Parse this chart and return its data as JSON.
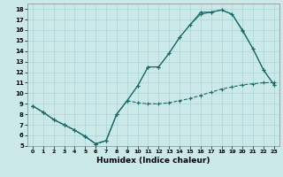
{
  "xlabel": "Humidex (Indice chaleur)",
  "bg_color": "#cce9e9",
  "grid_color": "#aad4d4",
  "line_color": "#1a6b6b",
  "xlim": [
    -0.5,
    23.5
  ],
  "ylim": [
    5,
    18.5
  ],
  "xticks": [
    0,
    1,
    2,
    3,
    4,
    5,
    6,
    7,
    8,
    9,
    10,
    11,
    12,
    13,
    14,
    15,
    16,
    17,
    18,
    19,
    20,
    21,
    22,
    23
  ],
  "yticks": [
    5,
    6,
    7,
    8,
    9,
    10,
    11,
    12,
    13,
    14,
    15,
    16,
    17,
    18
  ],
  "line1_x": [
    0,
    1,
    2,
    3,
    4,
    5,
    6,
    7,
    8,
    9,
    10,
    11,
    12,
    13,
    14,
    15,
    16,
    17,
    18,
    19,
    20,
    21,
    22,
    23
  ],
  "line1_y": [
    8.8,
    8.2,
    7.5,
    7.0,
    6.5,
    5.9,
    5.2,
    5.5,
    8.0,
    9.3,
    9.1,
    9.0,
    9.0,
    9.1,
    9.3,
    9.5,
    9.8,
    10.1,
    10.4,
    10.6,
    10.8,
    10.9,
    11.0,
    11.0
  ],
  "line2_x": [
    0,
    1,
    2,
    3,
    4,
    5,
    6,
    7,
    8,
    9,
    10,
    11,
    12,
    13,
    14,
    15,
    16,
    17,
    18,
    19,
    20,
    21,
    22,
    23
  ],
  "line2_y": [
    8.8,
    8.2,
    7.5,
    7.0,
    6.5,
    5.9,
    5.2,
    5.5,
    8.0,
    9.3,
    10.7,
    12.5,
    12.5,
    13.8,
    15.3,
    16.5,
    17.5,
    17.7,
    17.9,
    17.5,
    16.0,
    14.2,
    12.2,
    10.8
  ],
  "line3_x": [
    0,
    1,
    2,
    3,
    4,
    5,
    6,
    7,
    8,
    9,
    10,
    11,
    12,
    13,
    14,
    15,
    16,
    17,
    18,
    19,
    20,
    21,
    22,
    23
  ],
  "line3_y": [
    8.8,
    8.2,
    7.5,
    7.0,
    6.5,
    5.9,
    5.2,
    5.5,
    8.0,
    9.3,
    10.7,
    12.5,
    12.5,
    13.8,
    15.3,
    16.5,
    17.7,
    17.7,
    17.9,
    17.5,
    15.9,
    14.2,
    12.2,
    10.8
  ]
}
